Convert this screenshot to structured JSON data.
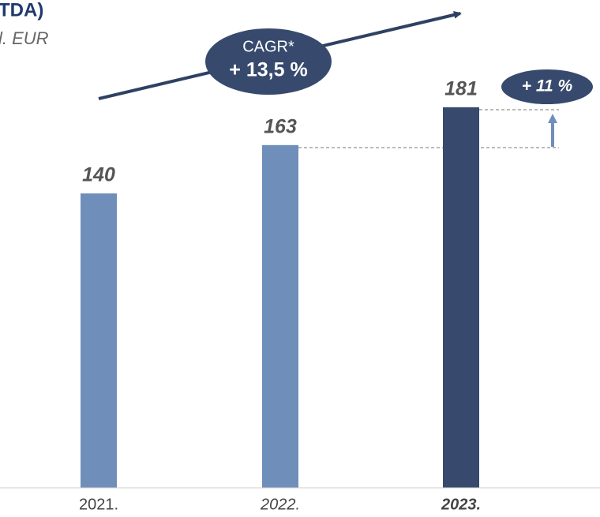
{
  "chart_data": {
    "type": "bar",
    "title": "TDA)",
    "subtitle": "l. EUR",
    "categories": [
      "2021.",
      "2022.",
      "2023."
    ],
    "values": [
      140,
      163,
      181
    ],
    "colors": [
      "#6f8fba",
      "#6f8fba",
      "#374a6d"
    ],
    "ylim": [
      0,
      232
    ],
    "annotations": {
      "cagr_label": "CAGR*",
      "cagr_value": "+ 13,5 %",
      "growth": "+ 11 %"
    }
  }
}
